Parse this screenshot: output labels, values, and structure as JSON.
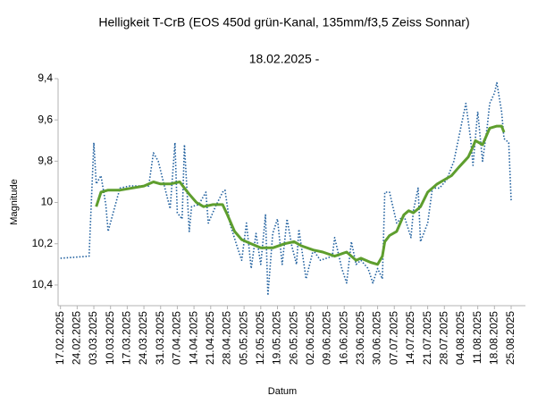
{
  "chart_data": {
    "type": "line",
    "title": "Helligkeit T-CrB (EOS 450d grün-Kanal, 135mm/f3,5 Zeiss Sonnar)",
    "subtitle": "18.02.2025 -",
    "x_label": "Datum",
    "y_label": "Magnitude",
    "xlim": [
      "16.02.2025",
      "31.08.2025"
    ],
    "xticks": [
      "17.02.2025",
      "24.02.2025",
      "03.03.2025",
      "10.03.2025",
      "17.03.2025",
      "24.03.2025",
      "31.03.2025",
      "07.04.2025",
      "14.04.2025",
      "21.04.2025",
      "28.04.2025",
      "05.05.2025",
      "12.05.2025",
      "19.05.2025",
      "26.05.2025",
      "02.06.2025",
      "09.06.2025",
      "16.06.2025",
      "23.06.2025",
      "30.06.2025",
      "07.07.2025",
      "14.07.2025",
      "21.07.2025",
      "28.07.2025",
      "04.08.2025",
      "11.08.2025",
      "18.08.2025",
      "25.08.2025"
    ],
    "ylim": [
      10.5,
      9.4
    ],
    "yticks": [
      {
        "value": 9.4,
        "label": "9,4"
      },
      {
        "value": 9.6,
        "label": "9,6"
      },
      {
        "value": 9.8,
        "label": "9,8"
      },
      10,
      {
        "value": 10.2,
        "label": "10,2"
      },
      {
        "value": 10.4,
        "label": "10,4"
      }
    ],
    "grid": false,
    "series": [
      {
        "color": "#1f5f9e",
        "line_style": "dotted",
        "x": [
          "17.02.2025",
          "01.03.2025",
          "03.03.2025",
          "04.03.2025",
          "06.03.2025",
          "08.03.2025",
          "09.03.2025",
          "13.03.2025",
          "14.03.2025",
          "18.03.2025",
          "22.03.2025",
          "26.03.2025",
          "28.03.2025",
          "30.03.2025",
          "02.04.2025",
          "04.04.2025",
          "06.04.2025",
          "07.04.2025",
          "09.04.2025",
          "10.04.2025",
          "12.04.2025",
          "13.04.2025",
          "16.04.2025",
          "19.04.2025",
          "20.04.2025",
          "23.04.2025",
          "26.04.2025",
          "27.04.2025",
          "29.04.2025",
          "02.05.2025",
          "04.05.2025",
          "06.05.2025",
          "08.05.2025",
          "10.05.2025",
          "12.05.2025",
          "14.05.2025",
          "15.05.2025",
          "17.05.2025",
          "19.05.2025",
          "21.05.2025",
          "23.05.2025",
          "25.05.2025",
          "27.05.2025",
          "28.05.2025",
          "31.05.2025",
          "03.06.2025",
          "06.06.2025",
          "11.06.2025",
          "12.06.2025",
          "15.06.2025",
          "17.06.2025",
          "19.06.2025",
          "21.06.2025",
          "23.06.2025",
          "26.06.2025",
          "28.06.2025",
          "30.06.2025",
          "02.07.2025",
          "03.07.2025",
          "05.07.2025",
          "08.07.2025",
          "11.07.2025",
          "14.07.2025",
          "15.07.2025",
          "17.07.2025",
          "18.07.2025",
          "21.07.2025",
          "23.07.2025",
          "26.07.2025",
          "29.07.2025",
          "01.08.2025",
          "04.08.2025",
          "06.08.2025",
          "08.08.2025",
          "09.08.2025",
          "11.08.2025",
          "13.08.2025",
          "15.08.2025",
          "16.08.2025",
          "18.08.2025",
          "19.08.2025",
          "21.08.2025",
          "22.08.2025",
          "24.08.2025",
          "25.08.2025"
        ],
        "values": [
          10.27,
          10.26,
          9.71,
          9.91,
          9.87,
          10.01,
          10.14,
          9.97,
          9.93,
          9.92,
          9.92,
          9.92,
          9.76,
          9.8,
          9.94,
          10.03,
          9.71,
          10.05,
          10.08,
          9.72,
          10.14,
          10.02,
          10.01,
          9.95,
          10.1,
          10.02,
          9.95,
          9.94,
          10.1,
          10.21,
          10.28,
          10.1,
          10.32,
          10.15,
          10.3,
          10.06,
          10.45,
          10.15,
          10.08,
          10.3,
          10.08,
          10.21,
          10.3,
          10.13,
          10.37,
          10.23,
          10.28,
          10.26,
          10.17,
          10.32,
          10.39,
          10.19,
          10.3,
          10.28,
          10.32,
          10.39,
          10.32,
          10.37,
          9.95,
          9.95,
          10.1,
          10.06,
          10.17,
          10.04,
          9.93,
          10.19,
          10.1,
          9.93,
          9.93,
          9.89,
          9.8,
          9.63,
          9.52,
          9.69,
          9.82,
          9.56,
          9.8,
          9.63,
          9.52,
          9.47,
          9.42,
          9.56,
          9.69,
          9.71,
          9.99
        ]
      },
      {
        "color": "#5e9e2e",
        "line_style": "solid",
        "x": [
          "04.03.2025",
          "06.03.2025",
          "09.03.2025",
          "14.03.2025",
          "24.03.2025",
          "28.03.2025",
          "31.03.2025",
          "04.04.2025",
          "08.04.2025",
          "10.04.2025",
          "12.04.2025",
          "15.04.2025",
          "18.04.2025",
          "22.04.2025",
          "26.04.2025",
          "28.04.2025",
          "01.05.2025",
          "04.05.2025",
          "08.05.2025",
          "12.05.2025",
          "17.05.2025",
          "22.05.2025",
          "26.05.2025",
          "29.05.2025",
          "03.06.2025",
          "07.06.2025",
          "12.06.2025",
          "17.06.2025",
          "21.06.2025",
          "23.06.2025",
          "27.06.2025",
          "30.06.2025",
          "02.07.2025",
          "03.07.2025",
          "05.07.2025",
          "08.07.2025",
          "11.07.2025",
          "13.07.2025",
          "15.07.2025",
          "18.07.2025",
          "21.07.2025",
          "25.07.2025",
          "31.07.2025",
          "03.08.2025",
          "07.08.2025",
          "09.08.2025",
          "10.08.2025",
          "13.08.2025",
          "16.08.2025",
          "19.08.2025",
          "21.08.2025",
          "22.08.2025"
        ],
        "values": [
          10.02,
          9.95,
          9.94,
          9.94,
          9.92,
          9.9,
          9.91,
          9.91,
          9.9,
          9.93,
          9.96,
          10.0,
          10.02,
          10.01,
          10.01,
          10.06,
          10.14,
          10.18,
          10.2,
          10.22,
          10.22,
          10.2,
          10.19,
          10.21,
          10.23,
          10.24,
          10.26,
          10.24,
          10.28,
          10.27,
          10.29,
          10.3,
          10.26,
          10.19,
          10.16,
          10.14,
          10.06,
          10.04,
          10.05,
          10.02,
          9.95,
          9.91,
          9.87,
          9.83,
          9.78,
          9.73,
          9.7,
          9.72,
          9.64,
          9.63,
          9.63,
          9.66
        ]
      }
    ]
  }
}
